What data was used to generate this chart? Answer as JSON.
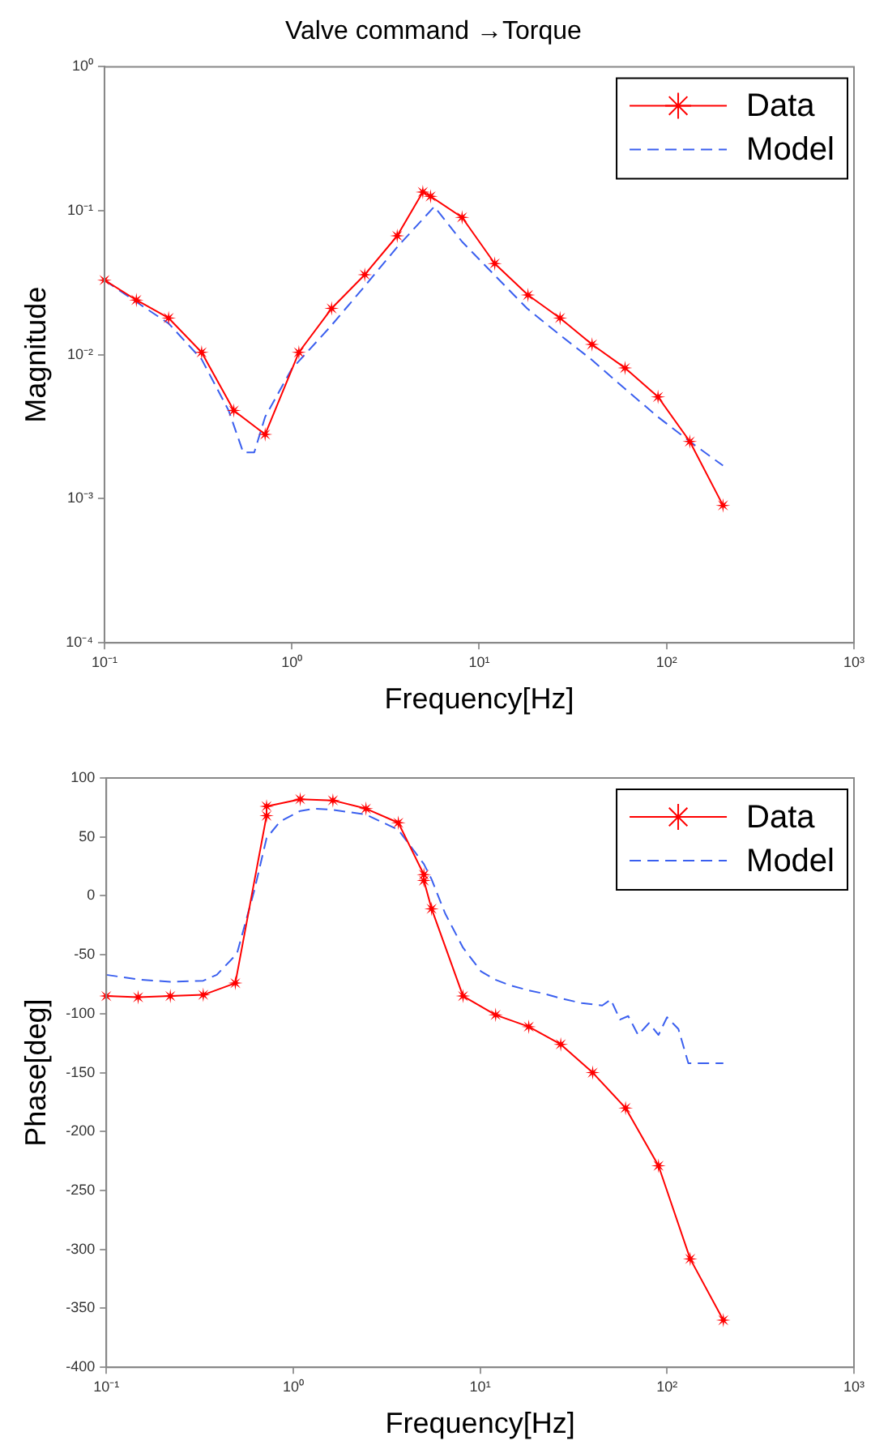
{
  "chart_data": [
    {
      "type": "line",
      "title": "Valve command →Torque",
      "xlabel": "Frequency[Hz]",
      "ylabel": "Magnitude",
      "log": "xy",
      "xlim": [
        0.1,
        1000
      ],
      "ylim": [
        0.0001,
        1
      ],
      "xticks": [
        {
          "value": 0.1,
          "label": "10⁻¹"
        },
        {
          "value": 1,
          "label": "10⁰"
        },
        {
          "value": 10,
          "label": "10¹"
        },
        {
          "value": 100,
          "label": "10²"
        },
        {
          "value": 1000,
          "label": "10³"
        }
      ],
      "yticks": [
        {
          "value": 0.0001,
          "label": "10⁻⁴"
        },
        {
          "value": 0.001,
          "label": "10⁻³"
        },
        {
          "value": 0.01,
          "label": "10⁻²"
        },
        {
          "value": 0.1,
          "label": "10⁻¹"
        },
        {
          "value": 1,
          "label": "10⁰"
        }
      ],
      "grid": false,
      "legend": "top right",
      "series": [
        {
          "name": "Data",
          "color": "#ff0000",
          "marker": "star",
          "line_style": "solid",
          "x": [
            0.1,
            0.148,
            0.22,
            0.33,
            0.49,
            0.72,
            1.09,
            1.63,
            2.45,
            3.65,
            5.0,
            5.5,
            8.1,
            12.1,
            18.2,
            27,
            40,
            60,
            90,
            133,
            200
          ],
          "values": [
            0.033,
            0.024,
            0.018,
            0.0104,
            0.0041,
            0.0028,
            0.0104,
            0.021,
            0.036,
            0.067,
            0.135,
            0.126,
            0.09,
            0.043,
            0.026,
            0.018,
            0.0118,
            0.0081,
            0.0051,
            0.0025,
            0.0009
          ]
        },
        {
          "name": "Model",
          "color": "#3a5fef",
          "marker": "none",
          "line_style": "dashed",
          "x": [
            0.1,
            0.15,
            0.22,
            0.33,
            0.46,
            0.55,
            0.63,
            0.72,
            1.0,
            1.6,
            2.45,
            3.65,
            5.76,
            8.1,
            12,
            18,
            27,
            40,
            60,
            90,
            133,
            200
          ],
          "values": [
            0.033,
            0.023,
            0.0165,
            0.0093,
            0.0041,
            0.0021,
            0.0021,
            0.0037,
            0.008,
            0.0156,
            0.03,
            0.056,
            0.107,
            0.061,
            0.036,
            0.021,
            0.0137,
            0.0092,
            0.0058,
            0.0037,
            0.0025,
            0.0017
          ]
        }
      ]
    },
    {
      "type": "line",
      "xlabel": "Frequency[Hz]",
      "ylabel": "Phase[deg]",
      "log": "x",
      "xlim": [
        0.1,
        1000
      ],
      "ylim": [
        -400,
        100
      ],
      "xticks": [
        {
          "value": 0.1,
          "label": "10⁻¹"
        },
        {
          "value": 1,
          "label": "10⁰"
        },
        {
          "value": 10,
          "label": "10¹"
        },
        {
          "value": 100,
          "label": "10²"
        },
        {
          "value": 1000,
          "label": "10³"
        }
      ],
      "yticks": [
        -400,
        -350,
        -300,
        -250,
        -200,
        -150,
        -100,
        -50,
        0,
        50,
        100
      ],
      "grid": false,
      "legend": "top right",
      "series": [
        {
          "name": "Data",
          "color": "#ff0000",
          "marker": "star",
          "line_style": "solid",
          "x": [
            0.1,
            0.148,
            0.22,
            0.33,
            0.49,
            0.72,
            0.72,
            1.09,
            1.63,
            2.45,
            3.65,
            5.0,
            5.0,
            5.5,
            8.1,
            12.1,
            18.2,
            27,
            40,
            60,
            90,
            133,
            200
          ],
          "values": [
            -85,
            -86,
            -85,
            -84,
            -74,
            68,
            76,
            82,
            81,
            74,
            62,
            18,
            13,
            -11,
            -85,
            -101,
            -111,
            -126,
            -150,
            -180,
            -229,
            -308,
            -360
          ]
        },
        {
          "name": "Model",
          "color": "#3a5fef",
          "marker": "none",
          "line_style": "dashed",
          "x": [
            0.1,
            0.15,
            0.22,
            0.33,
            0.39,
            0.5,
            0.62,
            0.72,
            0.85,
            1.09,
            1.3,
            1.63,
            2.45,
            3.65,
            5.0,
            5.5,
            6.5,
            8.1,
            10.1,
            12,
            14.5,
            18,
            22,
            27,
            35,
            45,
            50,
            56,
            62,
            70,
            80,
            90,
            100,
            115,
            130,
            200
          ],
          "values": [
            -67,
            -71,
            -73,
            -72,
            -67,
            -49,
            5,
            49,
            63,
            72,
            74,
            73,
            69,
            56,
            27,
            14,
            -15,
            -44,
            -64,
            -71,
            -76,
            -80,
            -83,
            -87,
            -91,
            -93,
            -88,
            -105,
            -102,
            -118,
            -108,
            -118,
            -103,
            -113,
            -142,
            -142
          ]
        }
      ]
    }
  ]
}
